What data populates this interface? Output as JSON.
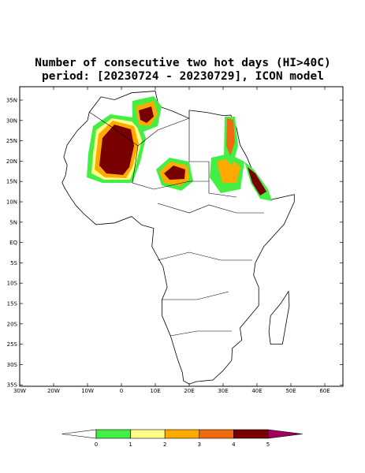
{
  "title": [
    "Number of consecutive two hot days (HI>40C)",
    "period: [20230724 - 20230729], ICON model"
  ],
  "map": {
    "lat_ticks": [
      {
        "value": 35,
        "label": "35N"
      },
      {
        "value": 30,
        "label": "30N"
      },
      {
        "value": 25,
        "label": "25N"
      },
      {
        "value": 20,
        "label": "20N"
      },
      {
        "value": 15,
        "label": "15N"
      },
      {
        "value": 10,
        "label": "10N"
      },
      {
        "value": 5,
        "label": "5N"
      },
      {
        "value": 0,
        "label": "EQ"
      },
      {
        "value": -5,
        "label": "5S"
      },
      {
        "value": -10,
        "label": "10S"
      },
      {
        "value": -15,
        "label": "15S"
      },
      {
        "value": -20,
        "label": "20S"
      },
      {
        "value": -25,
        "label": "25S"
      },
      {
        "value": -30,
        "label": "30S"
      },
      {
        "value": -35,
        "label": "35S"
      }
    ],
    "lon_ticks": [
      {
        "value": -30,
        "label": "30W"
      },
      {
        "value": -20,
        "label": "20W"
      },
      {
        "value": -10,
        "label": "10W"
      },
      0,
      {
        "value": 10,
        "label": "10E"
      },
      {
        "value": 20,
        "label": "20E"
      },
      {
        "value": 30,
        "label": "30E"
      },
      {
        "value": 40,
        "label": "40E"
      },
      {
        "value": 50,
        "label": "50E"
      },
      {
        "value": 60,
        "label": "60E"
      }
    ]
  },
  "colorbar": {
    "ticks": [
      0,
      1,
      2,
      3,
      4,
      5
    ],
    "colors": [
      "#ffffff",
      "#44ee44",
      "#ffff88",
      "#ffaa00",
      "#f26a10",
      "#780000",
      "#a0005a"
    ]
  }
}
